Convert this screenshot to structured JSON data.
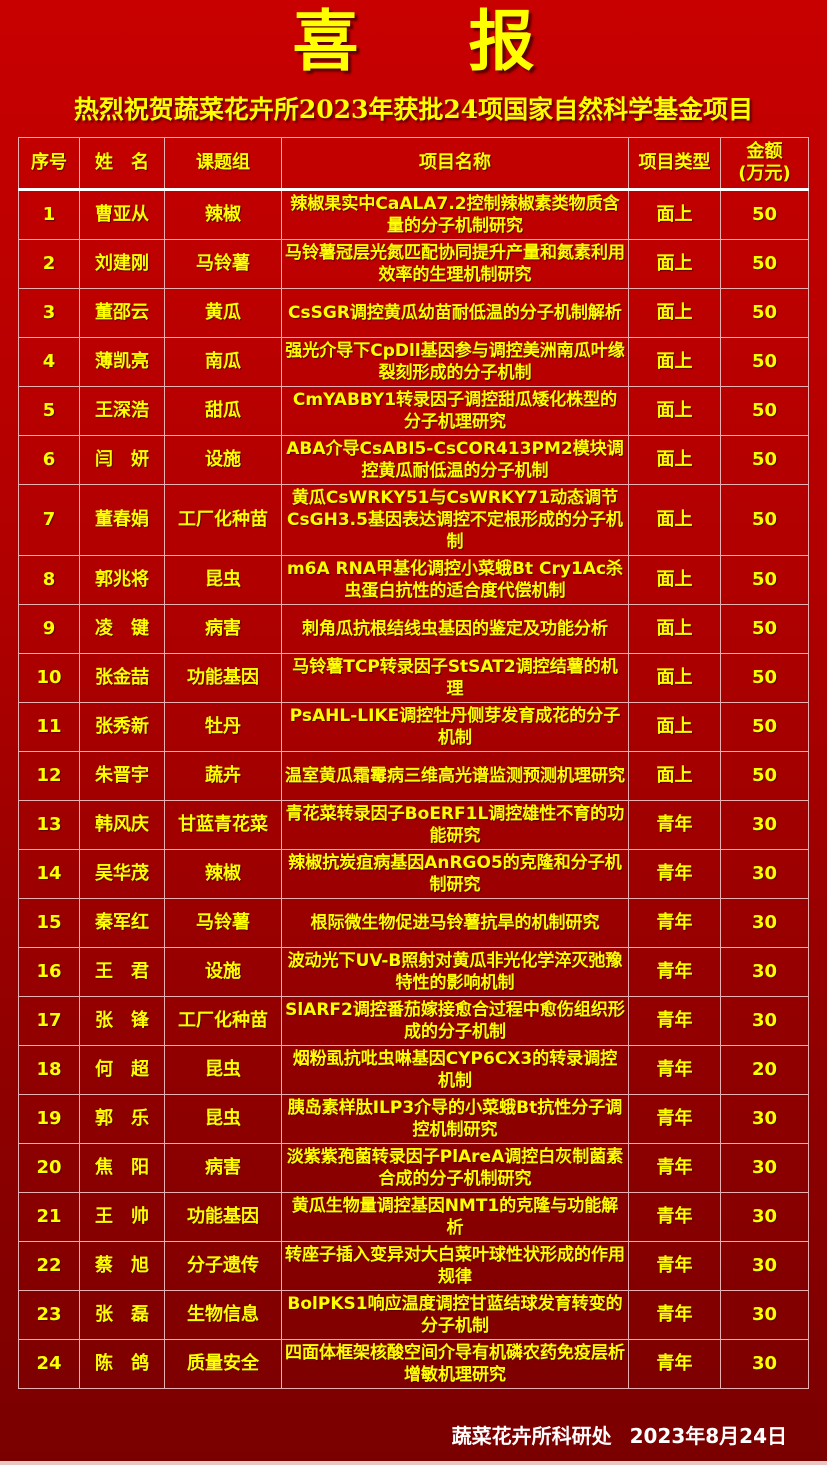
{
  "title": "喜报",
  "subtitle": "热烈祝贺蔬菜花卉所2023年获批24项国家自然科学基金项目",
  "colors": {
    "background": "#c80000",
    "text": "#ffff00",
    "footer_text": "#ffffff"
  },
  "table": {
    "headers": [
      "序号",
      "姓　名",
      "课题组",
      "项目名称",
      "项目类型",
      "金额\n(万元)"
    ],
    "rows": [
      [
        "1",
        "曹亚从",
        "辣椒",
        "辣椒果实中CaALA7.2控制辣椒素类物质含量的分子机制研究",
        "面上",
        "50"
      ],
      [
        "2",
        "刘建刚",
        "马铃薯",
        "马铃薯冠层光氮匹配协同提升产量和氮素利用效率的生理机制研究",
        "面上",
        "50"
      ],
      [
        "3",
        "董邵云",
        "黄瓜",
        "CsSGR调控黄瓜幼苗耐低温的分子机制解析",
        "面上",
        "50"
      ],
      [
        "4",
        "薄凯亮",
        "南瓜",
        "强光介导下CpDll基因参与调控美洲南瓜叶缘裂刻形成的分子机制",
        "面上",
        "50"
      ],
      [
        "5",
        "王深浩",
        "甜瓜",
        "CmYABBY1转录因子调控甜瓜矮化株型的分子机理研究",
        "面上",
        "50"
      ],
      [
        "6",
        "闫　妍",
        "设施",
        "ABA介导CsABI5-CsCOR413PM2模块调控黄瓜耐低温的分子机制",
        "面上",
        "50"
      ],
      [
        "7",
        "董春娟",
        "工厂化种苗",
        "黄瓜CsWRKY51与CsWRKY71动态调节CsGH3.5基因表达调控不定根形成的分子机制",
        "面上",
        "50"
      ],
      [
        "8",
        "郭兆将",
        "昆虫",
        "m6A RNA甲基化调控小菜蛾Bt Cry1Ac杀虫蛋白抗性的适合度代偿机制",
        "面上",
        "50"
      ],
      [
        "9",
        "凌　键",
        "病害",
        "刺角瓜抗根结线虫基因的鉴定及功能分析",
        "面上",
        "50"
      ],
      [
        "10",
        "张金喆",
        "功能基因",
        "马铃薯TCP转录因子StSAT2调控结薯的机理",
        "面上",
        "50"
      ],
      [
        "11",
        "张秀新",
        "牡丹",
        "PsAHL-LIKE调控牡丹侧芽发育成花的分子机制",
        "面上",
        "50"
      ],
      [
        "12",
        "朱晋宇",
        "蔬卉",
        "温室黄瓜霜霉病三维高光谱监测预测机理研究",
        "面上",
        "50"
      ],
      [
        "13",
        "韩风庆",
        "甘蓝青花菜",
        "青花菜转录因子BoERF1L调控雄性不育的功能研究",
        "青年",
        "30"
      ],
      [
        "14",
        "吴华茂",
        "辣椒",
        "辣椒抗炭疽病基因AnRGO5的克隆和分子机制研究",
        "青年",
        "30"
      ],
      [
        "15",
        "秦军红",
        "马铃薯",
        "根际微生物促进马铃薯抗旱的机制研究",
        "青年",
        "30"
      ],
      [
        "16",
        "王　君",
        "设施",
        "波动光下UV-B照射对黄瓜非光化学淬灭弛豫特性的影响机制",
        "青年",
        "30"
      ],
      [
        "17",
        "张　锋",
        "工厂化种苗",
        "SlARF2调控番茄嫁接愈合过程中愈伤组织形成的分子机制",
        "青年",
        "30"
      ],
      [
        "18",
        "何　超",
        "昆虫",
        "烟粉虱抗吡虫啉基因CYP6CX3的转录调控机制",
        "青年",
        "20"
      ],
      [
        "19",
        "郭　乐",
        "昆虫",
        "胰岛素样肽ILP3介导的小菜蛾Bt抗性分子调控机制研究",
        "青年",
        "30"
      ],
      [
        "20",
        "焦　阳",
        "病害",
        "淡紫紫孢菌转录因子PlAreA调控白灰制菌素合成的分子机制研究",
        "青年",
        "30"
      ],
      [
        "21",
        "王　帅",
        "功能基因",
        "黄瓜生物量调控基因NMT1的克隆与功能解析",
        "青年",
        "30"
      ],
      [
        "22",
        "蔡　旭",
        "分子遗传",
        "转座子插入变异对大白菜叶球性状形成的作用规律",
        "青年",
        "30"
      ],
      [
        "23",
        "张　磊",
        "生物信息",
        "BolPKS1响应温度调控甘蓝结球发育转变的分子机制",
        "青年",
        "30"
      ],
      [
        "24",
        "陈　鸽",
        "质量安全",
        "四面体框架核酸空间介导有机磷农药免疫层析增敏机理研究",
        "青年",
        "30"
      ]
    ]
  },
  "footer": {
    "org": "蔬菜花卉所科研处",
    "date": "2023年8月24日"
  }
}
